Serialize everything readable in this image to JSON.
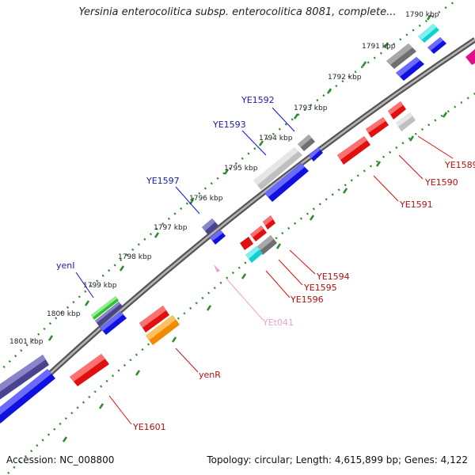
{
  "map": {
    "title": "Yersinia enterocolitica subsp. enterocolitica 8081, complete...",
    "accession": "Accession: NC_008800",
    "summary": "Topology: circular; Length: 4,615,899 bp; Genes: 4,122"
  },
  "colors": {
    "backbone": "#7a7a7a",
    "ticks": "#2e8b2e",
    "gene_red": "#e01010",
    "gene_blue": "#1010e0",
    "gene_navy": "#4a4490",
    "gene_gray": "#707070",
    "gene_lightgray": "#bfbfbf",
    "gene_cyan": "#10d0d0",
    "gene_green": "#30c030",
    "gene_orange": "#f08a00",
    "gene_pink": "#f0a0c8",
    "gene_magenta": "#e0108a",
    "label_blue": "#1a1ab0",
    "label_red": "#b01010",
    "label_pink": "#f0a0c8"
  },
  "ticks": [
    "1790 kbp",
    "1791 kbp",
    "1792 kbp",
    "1793 kbp",
    "1794 kbp",
    "1795 kbp",
    "1796 kbp",
    "1797 kbp",
    "1798 kbp",
    "1799 kbp",
    "1800 kbp",
    "1801 kbp"
  ],
  "gene_labels": {
    "ye1589": "YE1589",
    "ye1590": "YE1590",
    "ye1591": "YE1591",
    "ye1592": "YE1592",
    "ye1593": "YE1593",
    "ye1594": "YE1594",
    "ye1595": "YE1595",
    "ye1596": "YE1596",
    "ye1597": "YE1597",
    "yeni": "yenI",
    "yet041": "YEt041",
    "yenr": "yenR",
    "ye1601": "YE1601"
  }
}
